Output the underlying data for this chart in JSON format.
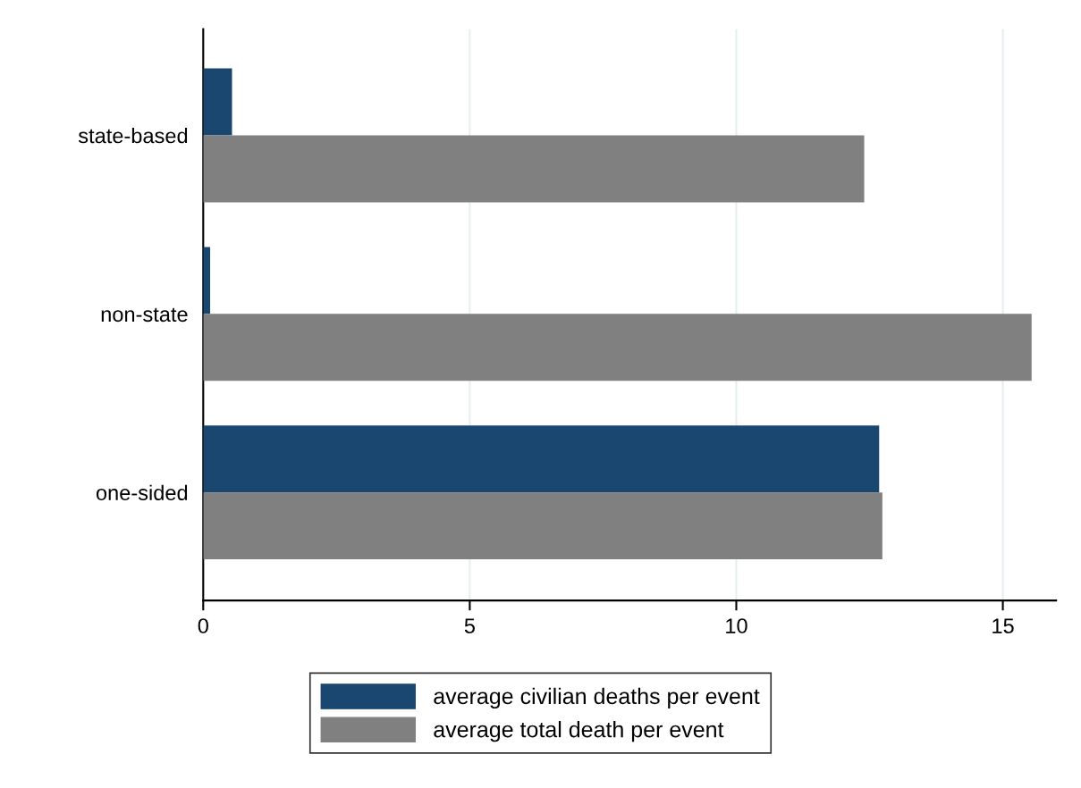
{
  "chart_data": {
    "type": "bar",
    "orientation": "horizontal",
    "categories": [
      "state-based",
      "non-state",
      "one-sided"
    ],
    "series": [
      {
        "name": "average civilian deaths per event",
        "color": "#1a476f",
        "values": [
          0.54,
          0.13,
          12.68
        ]
      },
      {
        "name": "average total death per event",
        "color": "#808080",
        "values": [
          12.4,
          15.54,
          12.74
        ]
      }
    ],
    "xlim": [
      0,
      16
    ],
    "xticks": [
      0,
      5,
      10,
      15
    ],
    "grid": "x",
    "legend": "bottom"
  }
}
